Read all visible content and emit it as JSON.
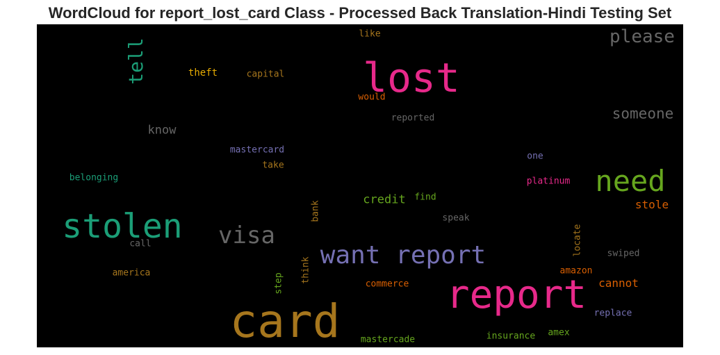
{
  "title": "WordCloud for report_lost_card Class - Processed Back Translation-Hindi Testing Set",
  "chart_data": {
    "type": "wordcloud",
    "background": "#000000",
    "words": [
      {
        "text": "card",
        "color": "#a6761d"
      },
      {
        "text": "report",
        "color": "#e7298a"
      },
      {
        "text": "lost",
        "color": "#e7298a"
      },
      {
        "text": "stolen",
        "color": "#1b9e77"
      },
      {
        "text": "want report",
        "color": "#7570b3"
      },
      {
        "text": "need",
        "color": "#66a61e"
      },
      {
        "text": "visa",
        "color": "#666666"
      },
      {
        "text": "tell",
        "color": "#1b9e77"
      },
      {
        "text": "please",
        "color": "#666666"
      },
      {
        "text": "someone",
        "color": "#666666"
      },
      {
        "text": "credit",
        "color": "#66a61e"
      },
      {
        "text": "know",
        "color": "#666666"
      },
      {
        "text": "stole",
        "color": "#d95f02"
      },
      {
        "text": "cannot",
        "color": "#d95f02"
      },
      {
        "text": "theft",
        "color": "#e6ab02"
      },
      {
        "text": "capital",
        "color": "#a6761d"
      },
      {
        "text": "like",
        "color": "#a6761d"
      },
      {
        "text": "would",
        "color": "#d95f02"
      },
      {
        "text": "reported",
        "color": "#666666"
      },
      {
        "text": "mastercard",
        "color": "#7570b3"
      },
      {
        "text": "take",
        "color": "#a6761d"
      },
      {
        "text": "belonging",
        "color": "#1b9e77"
      },
      {
        "text": "one",
        "color": "#7570b3"
      },
      {
        "text": "platinum",
        "color": "#e7298a"
      },
      {
        "text": "find",
        "color": "#66a61e"
      },
      {
        "text": "bank",
        "color": "#a6761d"
      },
      {
        "text": "speak",
        "color": "#666666"
      },
      {
        "text": "call",
        "color": "#666666"
      },
      {
        "text": "locate",
        "color": "#a6761d"
      },
      {
        "text": "swiped",
        "color": "#666666"
      },
      {
        "text": "america",
        "color": "#a6761d"
      },
      {
        "text": "think",
        "color": "#a6761d"
      },
      {
        "text": "step",
        "color": "#66a61e"
      },
      {
        "text": "amazon",
        "color": "#d95f02"
      },
      {
        "text": "commerce",
        "color": "#d95f02"
      },
      {
        "text": "replace",
        "color": "#7570b3"
      },
      {
        "text": "insurance",
        "color": "#66a61e"
      },
      {
        "text": "amex",
        "color": "#66a61e"
      },
      {
        "text": "mastercade",
        "color": "#66a61e"
      }
    ]
  }
}
